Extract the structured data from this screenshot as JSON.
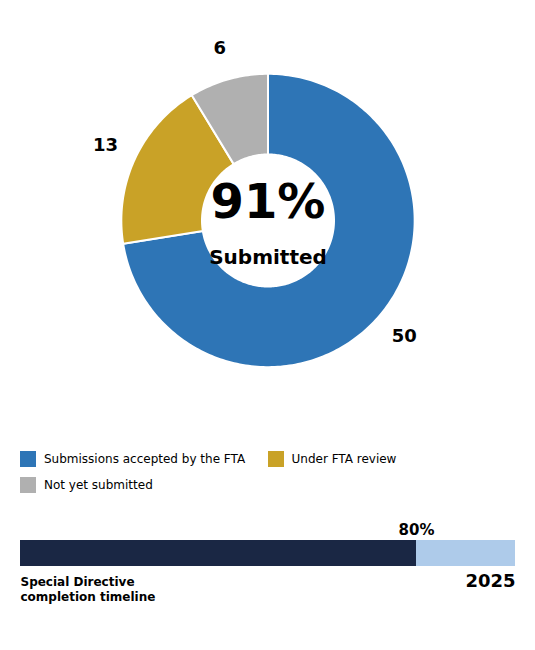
{
  "chart_data": [
    {
      "type": "pie",
      "categories": [
        "Submissions accepted by the FTA",
        "Under FTA review",
        "Not yet submitted"
      ],
      "values": [
        50,
        13,
        6
      ],
      "colors": [
        "#2E75B6",
        "#C9A227",
        "#B0B0B0"
      ],
      "data_labels": true,
      "annotations": [
        "91%",
        "Submitted"
      ],
      "legend": "bottom"
    },
    {
      "type": "bar",
      "orientation": "horizontal",
      "values": [
        80
      ],
      "value_labels": [
        "80%"
      ],
      "data_labels": true,
      "colors": [
        "#1A2744",
        "#AECBEA"
      ],
      "xlim": [
        0,
        100
      ],
      "tick_labels": false,
      "xlabel": "Special Directive\ncompletion timeline",
      "annotations": [
        "2025"
      ]
    }
  ]
}
